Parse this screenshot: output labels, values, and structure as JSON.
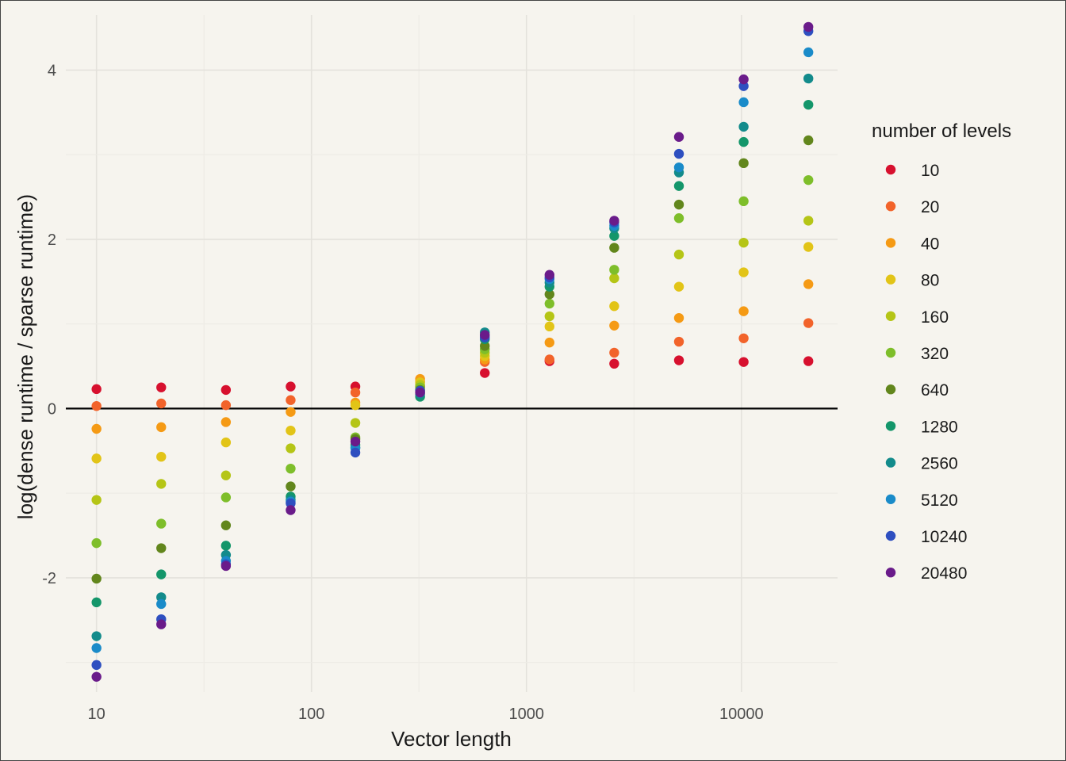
{
  "chart_data": {
    "type": "scatter",
    "title": "",
    "xlabel": "Vector length",
    "ylabel": "log(dense runtime / sparse runtime)",
    "x_scale": "log10",
    "x_ticks": [
      "10",
      "100",
      "1000",
      "10000"
    ],
    "y_ticks": [
      "-2",
      "0",
      "2",
      "4"
    ],
    "xlim": [
      7.2,
      28000
    ],
    "ylim": [
      -3.35,
      4.65
    ],
    "grid": true,
    "reference_line_y": 0,
    "legend_title": "number of levels",
    "legend_position": "right",
    "x": [
      10,
      20,
      40,
      80,
      160,
      320,
      640,
      1280,
      2560,
      5120,
      10240,
      20480
    ],
    "series": [
      {
        "name": "10",
        "color": "#D7102E",
        "values": [
          0.23,
          0.25,
          0.22,
          0.26,
          0.26,
          0.26,
          0.42,
          0.56,
          0.53,
          0.57,
          0.55,
          0.56
        ]
      },
      {
        "name": "20",
        "color": "#F2632A",
        "values": [
          0.03,
          0.06,
          0.04,
          0.1,
          0.19,
          0.32,
          0.55,
          0.58,
          0.66,
          0.79,
          0.83,
          1.01
        ]
      },
      {
        "name": "40",
        "color": "#F59A14",
        "values": [
          -0.24,
          -0.22,
          -0.16,
          -0.04,
          0.07,
          0.35,
          0.58,
          0.78,
          0.98,
          1.07,
          1.15,
          1.47
        ]
      },
      {
        "name": "80",
        "color": "#E2C417",
        "values": [
          -0.59,
          -0.57,
          -0.4,
          -0.26,
          0.04,
          0.31,
          0.62,
          0.97,
          1.21,
          1.44,
          1.61,
          1.91
        ]
      },
      {
        "name": "160",
        "color": "#B5C516",
        "values": [
          -1.08,
          -0.89,
          -0.79,
          -0.47,
          -0.17,
          0.28,
          0.66,
          1.09,
          1.54,
          1.82,
          1.96,
          2.22
        ]
      },
      {
        "name": "320",
        "color": "#7EBE2A",
        "values": [
          -1.59,
          -1.36,
          -1.05,
          -0.71,
          -0.34,
          0.25,
          0.7,
          1.24,
          1.64,
          2.25,
          2.45,
          2.7
        ]
      },
      {
        "name": "640",
        "color": "#62861C",
        "values": [
          -2.01,
          -1.65,
          -1.38,
          -0.92,
          -0.36,
          0.22,
          0.74,
          1.35,
          1.9,
          2.41,
          2.9,
          3.17
        ]
      },
      {
        "name": "1280",
        "color": "#14966A",
        "values": [
          -2.29,
          -1.96,
          -1.62,
          -1.04,
          -0.43,
          0.14,
          0.82,
          1.44,
          2.04,
          2.63,
          3.15,
          3.59
        ]
      },
      {
        "name": "2560",
        "color": "#138B8B",
        "values": [
          -2.69,
          -2.23,
          -1.73,
          -1.08,
          -0.46,
          0.17,
          0.9,
          1.49,
          2.13,
          2.79,
          3.33,
          3.9
        ]
      },
      {
        "name": "5120",
        "color": "#1A8BC9",
        "values": [
          -2.83,
          -2.31,
          -1.8,
          -1.1,
          -0.47,
          0.19,
          0.86,
          1.53,
          2.16,
          2.85,
          3.62,
          4.21
        ]
      },
      {
        "name": "10240",
        "color": "#2E4FC0",
        "values": [
          -3.03,
          -2.49,
          -1.84,
          -1.12,
          -0.52,
          0.21,
          0.84,
          1.55,
          2.2,
          3.01,
          3.81,
          4.46
        ]
      },
      {
        "name": "20480",
        "color": "#6A1B8A",
        "values": [
          -3.17,
          -2.55,
          -1.86,
          -1.2,
          -0.39,
          0.19,
          0.87,
          1.58,
          2.22,
          3.21,
          3.89,
          4.51
        ]
      }
    ]
  }
}
